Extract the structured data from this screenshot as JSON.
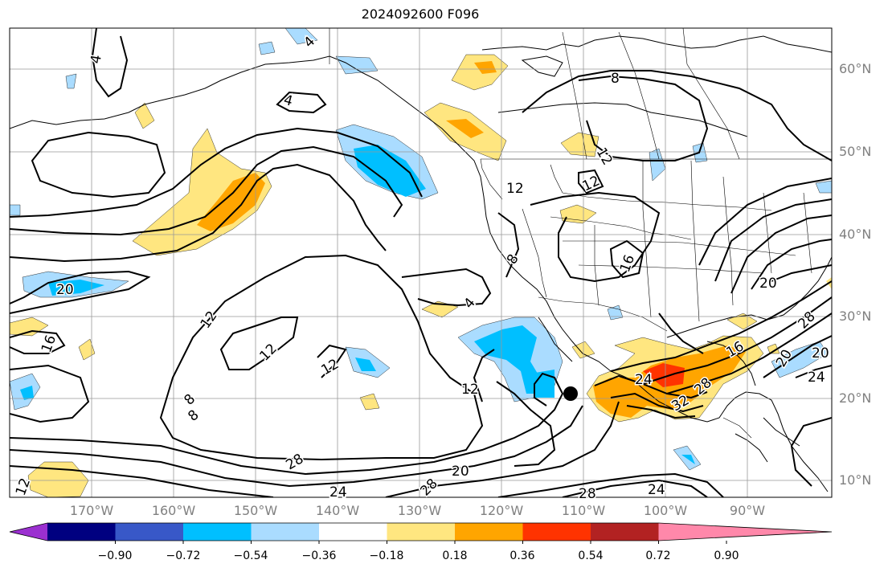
{
  "title": "2024092600 F096",
  "lat_labels": [
    "60°N",
    "50°N",
    "40°N",
    "30°N",
    "20°N",
    "10°N"
  ],
  "lon_labels": [
    "170°W",
    "160°W",
    "150°W",
    "140°W",
    "130°W",
    "120°W",
    "110°W",
    "100°W",
    "90°W"
  ],
  "colorbar": {
    "ticks": [
      "−0.90",
      "−0.72",
      "−0.54",
      "−0.36",
      "−0.18",
      "0.18",
      "0.36",
      "0.54",
      "0.72",
      "0.90"
    ],
    "colors": [
      "#9b30d0",
      "#000080",
      "#3858c8",
      "#00bfff",
      "#aadcff",
      "#ffffff",
      "#ffe680",
      "#ffa500",
      "#ff3300",
      "#b22222",
      "#ff88aa"
    ]
  },
  "contour_labels": [
    "4",
    "4",
    "8",
    "12",
    "4",
    "12",
    "16",
    "20",
    "12",
    "16",
    "12",
    "12",
    "12",
    "8",
    "4",
    "8",
    "12",
    "20",
    "20",
    "24",
    "32",
    "28",
    "16",
    "20",
    "24",
    "28",
    "20",
    "8",
    "28",
    "24",
    "28",
    "24",
    "28",
    "12"
  ],
  "storm_marker": "tropical-cyclone-center"
}
